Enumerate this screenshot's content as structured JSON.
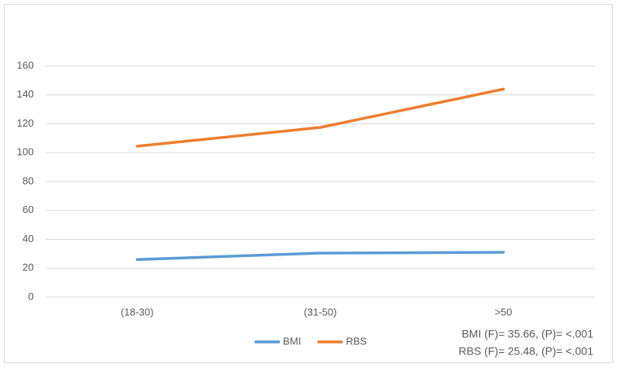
{
  "chart_data": {
    "type": "line",
    "categories": [
      "(18-30)",
      "(31-50)",
      ">50"
    ],
    "series": [
      {
        "name": "BMI",
        "color": "#5b9bd5",
        "values": [
          26,
          30.5,
          31
        ]
      },
      {
        "name": "RBS",
        "color": "#ed7d31",
        "values": [
          104.5,
          117.5,
          144
        ]
      }
    ],
    "ylim": [
      0,
      160
    ],
    "yticks": [
      0,
      20,
      40,
      60,
      80,
      100,
      120,
      140,
      160
    ],
    "grid": true,
    "legend": "bottom",
    "annotations": [
      "BMI (F)= 35.66, (P)= <.001",
      "RBS (F)= 25.48, (P)= <.001"
    ]
  }
}
